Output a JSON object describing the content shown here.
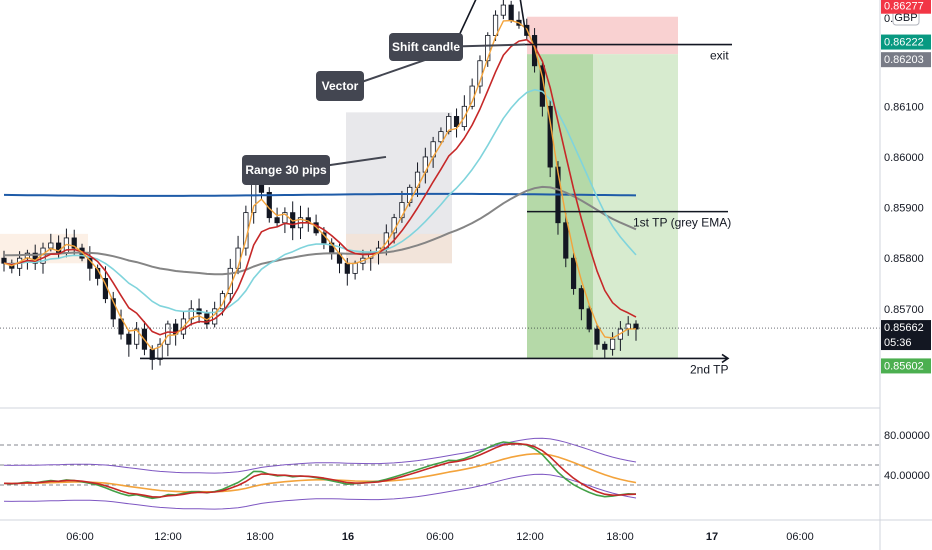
{
  "currency": "GBP",
  "price_axis_top_label": "0.",
  "chart_data": {
    "type": "candlestick",
    "title": "",
    "ylim": [
      0.8551,
      0.8631
    ],
    "y_ticks": [
      "0.85700",
      "0.85800",
      "0.85900",
      "0.86000",
      "0.86100"
    ],
    "x_ticks": [
      "06:00",
      "12:00",
      "18:00",
      "16",
      "06:00",
      "12:00",
      "18:00",
      "17",
      "06:00"
    ],
    "price_tags": [
      {
        "value": "0.86277",
        "color": "#f23645"
      },
      {
        "value": "0.86222",
        "color": "#089981"
      },
      {
        "value": "0.86203",
        "color": "#787b86"
      },
      {
        "value": "0.85662",
        "sub": "05:36",
        "color": "#131722"
      },
      {
        "value": "0.85602",
        "color": "#4caf50"
      }
    ],
    "levels": [
      {
        "label": "exit",
        "price": 0.86222
      },
      {
        "label": "1st TP (grey EMA)",
        "price": 0.85892
      },
      {
        "label": "2nd TP",
        "price": 0.85602
      }
    ],
    "annotations": [
      {
        "label": "Shift candle"
      },
      {
        "label": "Vector"
      },
      {
        "label": "Range 30 pips"
      }
    ],
    "series_close": [
      0.8579,
      0.8578,
      0.858,
      0.8581,
      0.8579,
      0.8582,
      0.8583,
      0.8581,
      0.8584,
      0.8582,
      0.858,
      0.8578,
      0.8576,
      0.8572,
      0.8568,
      0.8565,
      0.8563,
      0.8566,
      0.8562,
      0.856,
      0.8563,
      0.8567,
      0.8565,
      0.8568,
      0.857,
      0.8569,
      0.8567,
      0.857,
      0.8573,
      0.8578,
      0.8582,
      0.8589,
      0.8597,
      0.8593,
      0.8588,
      0.8587,
      0.8589,
      0.8586,
      0.8588,
      0.8587,
      0.8585,
      0.8583,
      0.8581,
      0.8579,
      0.8577,
      0.8579,
      0.858,
      0.8581,
      0.8582,
      0.8585,
      0.8588,
      0.8591,
      0.8594,
      0.8597,
      0.86,
      0.8603,
      0.8605,
      0.8608,
      0.8606,
      0.861,
      0.8614,
      0.8619,
      0.8624,
      0.8628,
      0.863,
      0.8627,
      0.8626,
      0.8624,
      0.8618,
      0.861,
      0.8598,
      0.8587,
      0.858,
      0.8574,
      0.857,
      0.8566,
      0.8563,
      0.8562,
      0.8564,
      0.8566,
      0.8567,
      0.8566
    ],
    "oscillator": {
      "ylim": [
        -5,
        105
      ],
      "y_ticks": [
        "80.00000",
        "40.00000"
      ],
      "levels": [
        70,
        50,
        30
      ]
    }
  }
}
